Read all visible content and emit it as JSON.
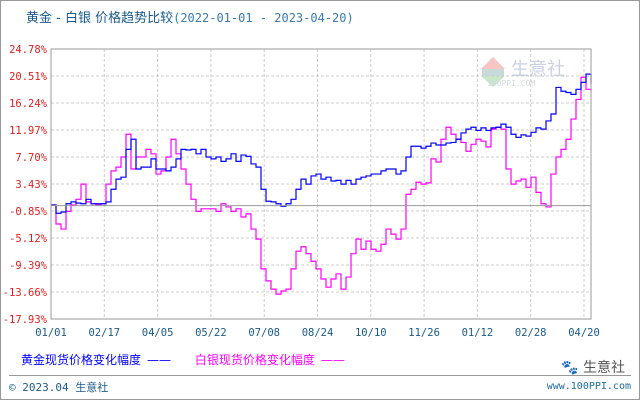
{
  "title": {
    "main": "黄金 - 白银 价格趋势比较",
    "range": "(2022-01-01 - 2023-04-20)"
  },
  "watermark": {
    "text": "生意社",
    "url": "100PPI.COM"
  },
  "legend": [
    {
      "label": "黄金现货价格变化幅度",
      "color": "#0000ff"
    },
    {
      "label": "白银现货价格变化幅度",
      "color": "#ff00ff"
    }
  ],
  "footer": {
    "copyright": "© 2023.04 生意社",
    "site": "www.100PPI.com",
    "brand": "生意社"
  },
  "chart_data": {
    "type": "line",
    "title": "黄金 - 白银 价格趋势比较 (2022-01-01 - 2023-04-20)",
    "ylabel": "",
    "xlabel": "",
    "ylim": [
      -17.93,
      24.78
    ],
    "yticks": [
      "24.78%",
      "20.51%",
      "16.24%",
      "11.97%",
      "7.70%",
      "3.43%",
      "-0.85%",
      "-5.12%",
      "-9.39%",
      "-13.66%",
      "-17.93%"
    ],
    "ytick_values": [
      24.78,
      20.51,
      16.24,
      11.97,
      7.7,
      3.43,
      -0.85,
      -5.12,
      -9.39,
      -13.66,
      -17.93
    ],
    "xticks": [
      "01/01",
      "02/17",
      "04/05",
      "05/22",
      "07/08",
      "08/24",
      "10/10",
      "11/26",
      "01/12",
      "02/28",
      "04/20"
    ],
    "grid": true,
    "x_range": [
      "2022-01-01",
      "2023-04-20"
    ],
    "series": [
      {
        "name": "黄金现货价格变化幅度",
        "color": "#0000ff",
        "values": [
          0.1,
          -1.2,
          -1.0,
          0.3,
          0.6,
          0.4,
          0.3,
          1.0,
          0.3,
          0.3,
          0.3,
          0.6,
          2.6,
          4.2,
          4.5,
          8.9,
          10.5,
          5.8,
          6.1,
          6.1,
          7.4,
          5.8,
          5.8,
          5.5,
          6.1,
          7.4,
          8.9,
          8.8,
          8.9,
          8.2,
          8.9,
          7.7,
          7.4,
          7.7,
          7.0,
          7.4,
          8.2,
          7.0,
          8.0,
          7.8,
          6.6,
          6.1,
          2.6,
          0.7,
          0.6,
          0.3,
          -0.1,
          0.3,
          1.0,
          2.6,
          4.2,
          3.4,
          4.7,
          5.0,
          4.2,
          4.5,
          3.9,
          4.0,
          3.4,
          4.0,
          3.4,
          4.2,
          4.5,
          4.7,
          5.0,
          5.0,
          5.5,
          5.8,
          5.8,
          5.0,
          5.5,
          7.7,
          9.4,
          9.4,
          9.1,
          9.4,
          9.9,
          9.6,
          9.6,
          9.9,
          10.0,
          10.5,
          11.5,
          12.1,
          12.4,
          11.9,
          12.3,
          11.9,
          12.3,
          12.4,
          12.9,
          12.4,
          11.3,
          10.8,
          11.2,
          11.0,
          11.6,
          12.3,
          12.1,
          13.4,
          14.5,
          18.7,
          18.1,
          17.9,
          17.6,
          18.4,
          19.5,
          20.8,
          19.3
        ]
      },
      {
        "name": "白银现货价格变化幅度",
        "color": "#ff00ff",
        "values": [
          0.1,
          -2.9,
          -3.7,
          -0.9,
          0.1,
          1.0,
          3.4,
          0.6,
          0.3,
          0.1,
          0.3,
          3.4,
          5.5,
          6.1,
          7.7,
          11.3,
          5.8,
          7.7,
          7.7,
          8.9,
          8.2,
          5.0,
          5.5,
          7.7,
          10.5,
          8.2,
          5.8,
          3.4,
          1.0,
          -0.9,
          -0.5,
          -0.5,
          -0.5,
          -0.9,
          0.3,
          -0.2,
          -0.9,
          -0.5,
          -1.8,
          -1.3,
          -3.7,
          -5.3,
          -10.0,
          -11.9,
          -13.2,
          -14.0,
          -13.5,
          -13.2,
          -10.0,
          -7.2,
          -6.5,
          -7.6,
          -8.8,
          -10.0,
          -11.6,
          -12.9,
          -11.6,
          -10.8,
          -13.2,
          -11.3,
          -7.6,
          -5.3,
          -6.9,
          -5.6,
          -6.9,
          -7.2,
          -6.1,
          -3.7,
          -4.5,
          -5.3,
          -3.7,
          1.8,
          2.6,
          3.7,
          3.4,
          3.6,
          7.4,
          6.9,
          10.5,
          12.4,
          11.3,
          10.5,
          10.0,
          8.6,
          9.7,
          10.5,
          10.2,
          9.3,
          12.1,
          12.4,
          12.1,
          5.8,
          3.4,
          3.9,
          4.2,
          2.9,
          4.5,
          2.1,
          0.3,
          -0.2,
          5.0,
          7.7,
          8.9,
          10.5,
          13.7,
          16.8,
          20.3,
          18.4,
          18.1
        ]
      }
    ]
  }
}
